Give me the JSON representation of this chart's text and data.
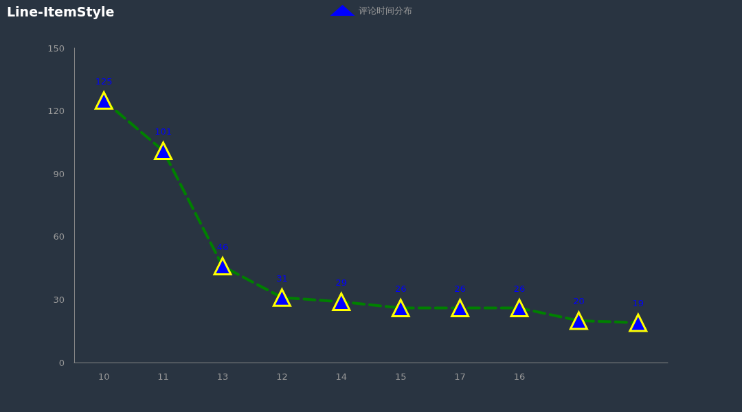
{
  "chart_data": {
    "type": "line",
    "title": "Line-ItemStyle",
    "categories": [
      "10",
      "11",
      "13",
      "12",
      "14",
      "15",
      "17",
      "16",
      null,
      null
    ],
    "series": [
      {
        "name": "评论时间分布",
        "color": "#008000",
        "values": [
          125,
          101,
          46,
          31,
          29,
          26,
          26,
          26,
          20,
          19
        ]
      }
    ],
    "ylim": [
      0,
      150
    ],
    "yticks": [
      0,
      30,
      60,
      90,
      120,
      150
    ],
    "grid": false,
    "legend": "top",
    "marker": "triangle",
    "line_style": "dashed",
    "data_labels": true
  }
}
